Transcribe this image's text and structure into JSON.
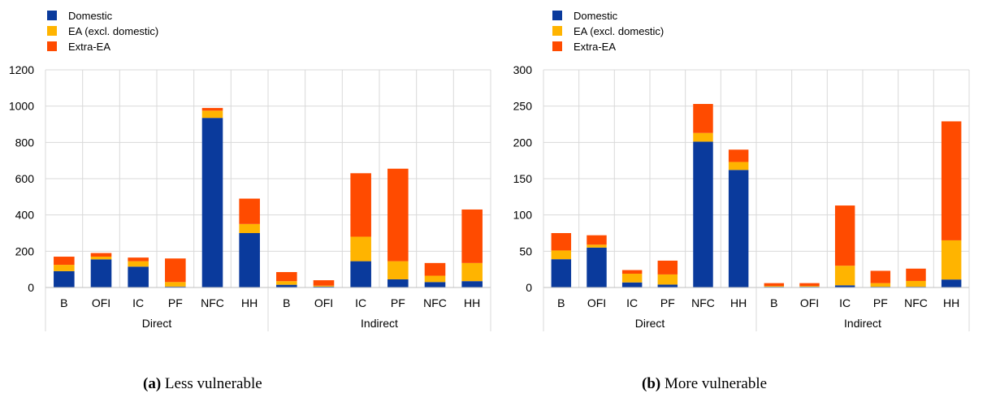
{
  "colors": {
    "domestic": "#0a3a9c",
    "ea": "#ffb400",
    "extra": "#ff4b00",
    "grid": "#d9d9d9"
  },
  "captions": [
    {
      "label": "(a)",
      "text": "Less vulnerable"
    },
    {
      "label": "(b)",
      "text": "More vulnerable"
    }
  ],
  "chart_data": [
    {
      "type": "bar",
      "stacked": true,
      "title": "",
      "legend": [
        "Domestic",
        "EA (excl. domestic)",
        "Extra-EA"
      ],
      "legend_position": "top-left",
      "categories": [
        "B",
        "OFI",
        "IC",
        "PF",
        "NFC",
        "HH",
        "B",
        "OFI",
        "IC",
        "PF",
        "NFC",
        "HH"
      ],
      "groups": [
        {
          "label": "Direct",
          "count": 6
        },
        {
          "label": "Indirect",
          "count": 6
        }
      ],
      "ylim": [
        0,
        1200
      ],
      "yticks": [
        0,
        200,
        400,
        600,
        800,
        1000,
        1200
      ],
      "grid": true,
      "series": [
        {
          "name": "Domestic",
          "values": [
            90,
            155,
            115,
            5,
            935,
            300,
            15,
            5,
            145,
            45,
            30,
            35
          ]
        },
        {
          "name": "EA (excl. domestic)",
          "values": [
            35,
            15,
            30,
            25,
            40,
            50,
            20,
            5,
            135,
            100,
            35,
            100
          ]
        },
        {
          "name": "Extra-EA",
          "values": [
            45,
            20,
            20,
            130,
            15,
            140,
            50,
            30,
            350,
            510,
            70,
            295
          ]
        }
      ]
    },
    {
      "type": "bar",
      "stacked": true,
      "title": "",
      "legend": [
        "Domestic",
        "EA (excl. domestic)",
        "Extra-EA"
      ],
      "legend_position": "top-left",
      "categories": [
        "B",
        "OFI",
        "IC",
        "PF",
        "NFC",
        "HH",
        "B",
        "OFI",
        "IC",
        "PF",
        "NFC",
        "HH"
      ],
      "groups": [
        {
          "label": "Direct",
          "count": 6
        },
        {
          "label": "Indirect",
          "count": 6
        }
      ],
      "ylim": [
        0,
        300
      ],
      "yticks": [
        0,
        50,
        100,
        150,
        200,
        250,
        300
      ],
      "grid": true,
      "series": [
        {
          "name": "Domestic",
          "values": [
            39,
            55,
            7,
            4,
            201,
            162,
            1,
            1,
            3,
            1,
            1,
            11
          ]
        },
        {
          "name": "EA (excl. domestic)",
          "values": [
            12,
            4,
            12,
            14,
            12,
            11,
            1,
            1,
            27,
            5,
            8,
            54
          ]
        },
        {
          "name": "Extra-EA",
          "values": [
            24,
            13,
            5,
            19,
            40,
            17,
            4,
            4,
            83,
            17,
            17,
            164
          ]
        }
      ]
    }
  ]
}
